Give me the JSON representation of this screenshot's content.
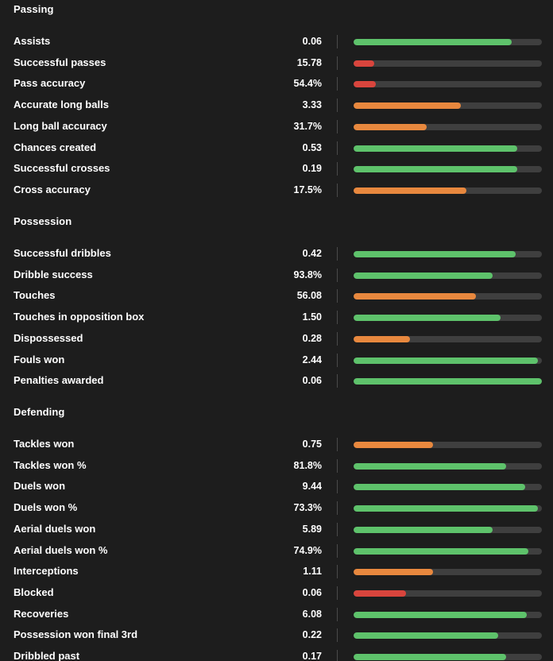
{
  "sections": [
    {
      "title": "Passing",
      "rows": [
        {
          "label": "Assists",
          "value": "0.06",
          "percentile": 84,
          "color": "green"
        },
        {
          "label": "Successful passes",
          "value": "15.78",
          "percentile": 11,
          "color": "red"
        },
        {
          "label": "Pass accuracy",
          "value": "54.4%",
          "percentile": 12,
          "color": "red"
        },
        {
          "label": "Accurate long balls",
          "value": "3.33",
          "percentile": 57,
          "color": "orange"
        },
        {
          "label": "Long ball accuracy",
          "value": "31.7%",
          "percentile": 39,
          "color": "orange"
        },
        {
          "label": "Chances created",
          "value": "0.53",
          "percentile": 87,
          "color": "green"
        },
        {
          "label": "Successful crosses",
          "value": "0.19",
          "percentile": 87,
          "color": "green"
        },
        {
          "label": "Cross accuracy",
          "value": "17.5%",
          "percentile": 60,
          "color": "orange"
        }
      ]
    },
    {
      "title": "Possession",
      "rows": [
        {
          "label": "Successful dribbles",
          "value": "0.42",
          "percentile": 86,
          "color": "green"
        },
        {
          "label": "Dribble success",
          "value": "93.8%",
          "percentile": 74,
          "color": "green"
        },
        {
          "label": "Touches",
          "value": "56.08",
          "percentile": 65,
          "color": "orange"
        },
        {
          "label": "Touches in opposition box",
          "value": "1.50",
          "percentile": 78,
          "color": "green"
        },
        {
          "label": "Dispossessed",
          "value": "0.28",
          "percentile": 30,
          "color": "orange"
        },
        {
          "label": "Fouls won",
          "value": "2.44",
          "percentile": 98,
          "color": "green"
        },
        {
          "label": "Penalties awarded",
          "value": "0.06",
          "percentile": 100,
          "color": "green"
        }
      ]
    },
    {
      "title": "Defending",
      "rows": [
        {
          "label": "Tackles won",
          "value": "0.75",
          "percentile": 42,
          "color": "orange"
        },
        {
          "label": "Tackles won %",
          "value": "81.8%",
          "percentile": 81,
          "color": "green"
        },
        {
          "label": "Duels won",
          "value": "9.44",
          "percentile": 91,
          "color": "green"
        },
        {
          "label": "Duels won %",
          "value": "73.3%",
          "percentile": 98,
          "color": "green"
        },
        {
          "label": "Aerial duels won",
          "value": "5.89",
          "percentile": 74,
          "color": "green"
        },
        {
          "label": "Aerial duels won %",
          "value": "74.9%",
          "percentile": 93,
          "color": "green"
        },
        {
          "label": "Interceptions",
          "value": "1.11",
          "percentile": 42,
          "color": "orange"
        },
        {
          "label": "Blocked",
          "value": "0.06",
          "percentile": 28,
          "color": "red"
        },
        {
          "label": "Recoveries",
          "value": "6.08",
          "percentile": 92,
          "color": "green"
        },
        {
          "label": "Possession won final 3rd",
          "value": "0.22",
          "percentile": 77,
          "color": "green"
        },
        {
          "label": "Dribbled past",
          "value": "0.17",
          "percentile": 81,
          "color": "green"
        }
      ]
    }
  ]
}
